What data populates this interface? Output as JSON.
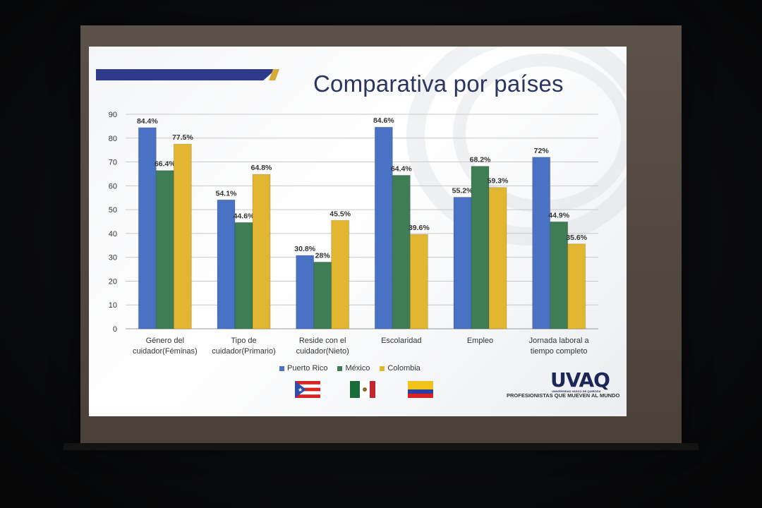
{
  "slide": {
    "title": "Comparativa por países",
    "logo": "UVAQ",
    "logo_sub": "UNIVERSIDAD VASCO DE QUIROGA",
    "tagline": "PROFESIONISTAS QUE MUEVEN AL MUNDO",
    "flags": [
      "puerto-rico-flag",
      "mexico-flag",
      "colombia-flag"
    ]
  },
  "chart_data": {
    "type": "bar",
    "title": "Comparativa por países",
    "categories": [
      [
        "Género del",
        "cuidador(Féminas)"
      ],
      [
        "Tipo de",
        "cuidador(Primario)"
      ],
      [
        "Reside con el",
        "cuidador(Nieto)"
      ],
      [
        "Escolaridad"
      ],
      [
        "Empleo"
      ],
      [
        "Jornada laboral a",
        "tiempo completo"
      ]
    ],
    "series": [
      {
        "name": "Puerto Rico",
        "color": "#4a72c4",
        "values": [
          84.4,
          54.1,
          30.8,
          84.6,
          55.2,
          72
        ],
        "labels": [
          "84.4%",
          "54.1%",
          "30.8%",
          "84.6%",
          "55.2%",
          "72%"
        ]
      },
      {
        "name": "México",
        "color": "#3e7d55",
        "values": [
          66.4,
          44.6,
          28,
          64.4,
          68.2,
          44.9
        ],
        "labels": [
          "66.4%",
          "44.6%",
          "28%",
          "64.4%",
          "68.2%",
          "44.9%"
        ]
      },
      {
        "name": "Colombia",
        "color": "#e2b630",
        "values": [
          77.5,
          64.8,
          45.5,
          39.6,
          59.3,
          35.6
        ],
        "labels": [
          "77.5%",
          "64.8%",
          "45.5%",
          "39.6%",
          "59.3%",
          "35.6%"
        ]
      }
    ],
    "ylim": [
      0,
      90
    ],
    "yticks": [
      "0",
      "10",
      "20",
      "30",
      "40",
      "50",
      "60",
      "70",
      "80",
      "90"
    ],
    "grid": true,
    "legend": "bottom"
  }
}
